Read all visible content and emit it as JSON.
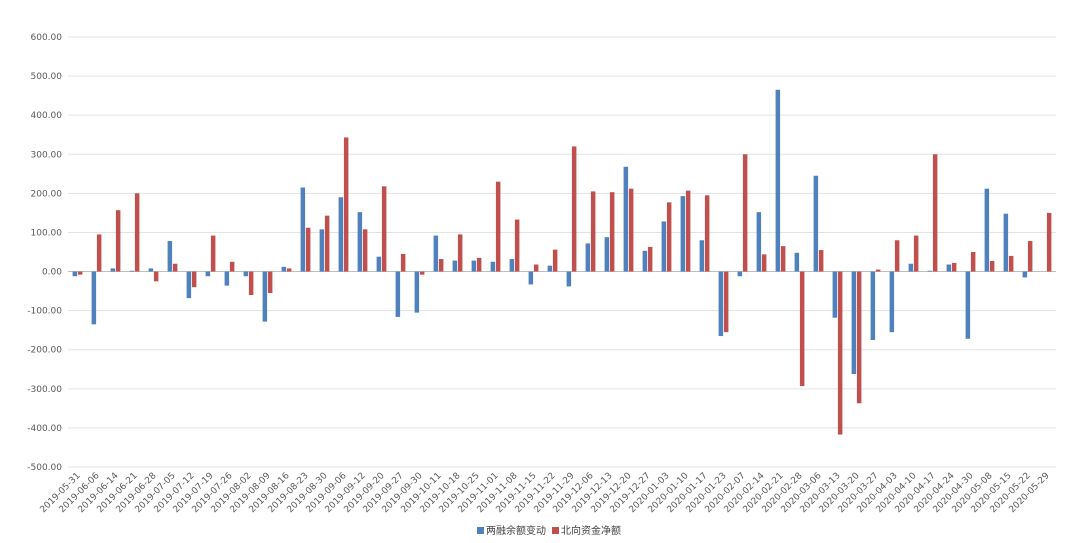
{
  "chart_data": {
    "type": "bar",
    "title": "",
    "xlabel": "",
    "ylabel": "",
    "ylim": [
      -500,
      600
    ],
    "yticks": [
      600,
      500,
      400,
      300,
      200,
      100,
      0,
      -100,
      -200,
      -300,
      -400,
      -500
    ],
    "ytick_labels": [
      "600.00",
      "500.00",
      "400.00",
      "300.00",
      "200.00",
      "100.00",
      "0.00",
      "-100.00",
      "-200.00",
      "-300.00",
      "-400.00",
      "-500.00"
    ],
    "grid": true,
    "legend_position": "bottom-center",
    "categories": [
      "2019-05-31",
      "2019-06-06",
      "2019-06-14",
      "2019-06-21",
      "2019-06-28",
      "2019-07-05",
      "2019-07-12",
      "2019-07-19",
      "2019-07-26",
      "2019-08-02",
      "2019-08-09",
      "2019-08-16",
      "2019-08-23",
      "2019-08-30",
      "2019-09-06",
      "2019-09-12",
      "2019-09-20",
      "2019-09-27",
      "2019-09-30",
      "2019-10-11",
      "2019-10-18",
      "2019-10-25",
      "2019-11-01",
      "2019-11-08",
      "2019-11-15",
      "2019-11-22",
      "2019-11-29",
      "2019-12-06",
      "2019-12-13",
      "2019-12-20",
      "2019-12-27",
      "2020-01-03",
      "2020-01-10",
      "2020-01-17",
      "2020-01-23",
      "2020-02-07",
      "2020-02-14",
      "2020-02-21",
      "2020-02-28",
      "2020-03-06",
      "2020-03-13",
      "2020-03-20",
      "2020-03-27",
      "2020-04-03",
      "2020-04-10",
      "2020-04-17",
      "2020-04-24",
      "2020-04-30",
      "2020-05-08",
      "2020-05-15",
      "2020-05-22",
      "2020-05-29"
    ],
    "series": [
      {
        "name": "两融余额变动",
        "color": "#4f81bd",
        "values": [
          -12,
          -135,
          8,
          2,
          8,
          78,
          -68,
          -12,
          -36,
          -12,
          -128,
          12,
          215,
          108,
          190,
          152,
          38,
          -116,
          -105,
          92,
          28,
          28,
          25,
          32,
          -33,
          15,
          -38,
          72,
          88,
          268,
          53,
          128,
          193,
          80,
          -165,
          -12,
          152,
          465,
          48,
          245,
          -118,
          -262,
          -175,
          -155,
          20,
          2,
          18,
          -172,
          212,
          148,
          -15,
          0
        ]
      },
      {
        "name": "北向资金净额",
        "color": "#c0504d",
        "values": [
          -8,
          95,
          157,
          200,
          -25,
          20,
          -40,
          92,
          25,
          -60,
          -55,
          8,
          112,
          143,
          343,
          108,
          218,
          45,
          -8,
          32,
          95,
          35,
          230,
          133,
          18,
          56,
          320,
          205,
          203,
          212,
          63,
          177,
          207,
          195,
          -155,
          300,
          44,
          65,
          -293,
          55,
          -417,
          -337,
          5,
          80,
          92,
          300,
          22,
          50,
          27,
          40,
          78,
          150
        ]
      }
    ]
  }
}
